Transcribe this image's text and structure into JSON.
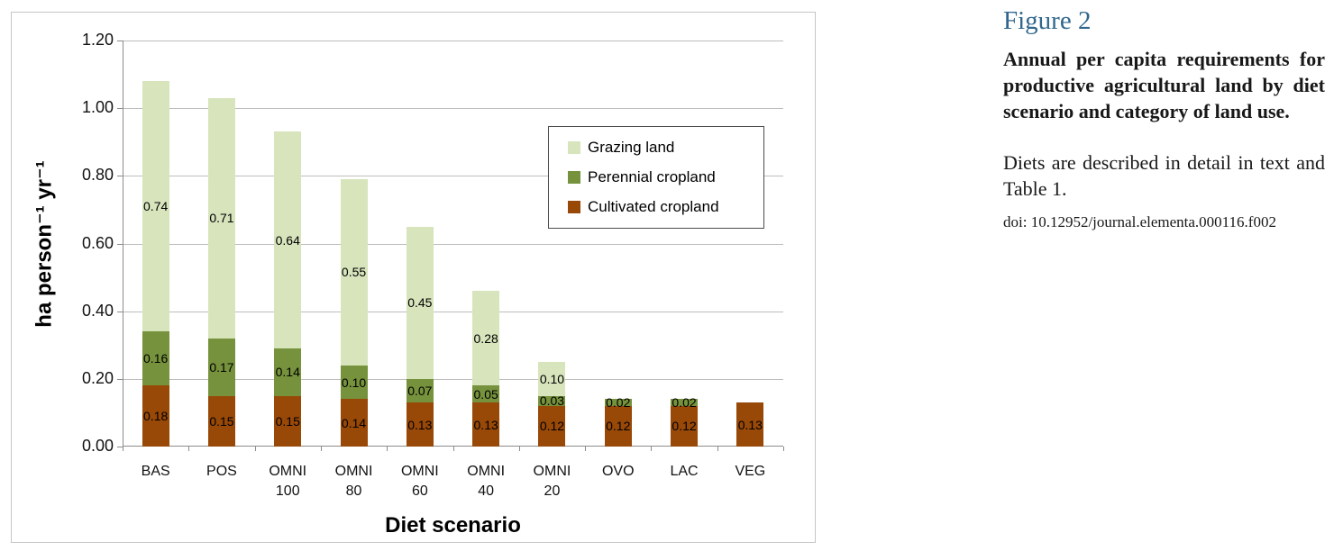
{
  "chart_data": {
    "type": "bar",
    "stacked": true,
    "categories": [
      "BAS",
      "POS",
      "OMNI 100",
      "OMNI 80",
      "OMNI 60",
      "OMNI 40",
      "OMNI 20",
      "OVO",
      "LAC",
      "VEG"
    ],
    "series": [
      {
        "name": "Cultivated cropland",
        "color": "#984807",
        "values": [
          0.18,
          0.15,
          0.15,
          0.14,
          0.13,
          0.13,
          0.12,
          0.12,
          0.12,
          0.13
        ]
      },
      {
        "name": "Perennial cropland",
        "color": "#76923C",
        "values": [
          0.16,
          0.17,
          0.14,
          0.1,
          0.07,
          0.05,
          0.03,
          0.02,
          0.02,
          0
        ]
      },
      {
        "name": "Grazing land",
        "color": "#D7E4BC",
        "values": [
          0.74,
          0.71,
          0.64,
          0.55,
          0.45,
          0.28,
          0.1,
          0,
          0,
          0
        ]
      }
    ],
    "totals": [
      1.08,
      1.03,
      0.93,
      0.79,
      0.65,
      0.46,
      0.25,
      0.14,
      0.14,
      0.13
    ],
    "title": "",
    "xlabel": "Diet scenario",
    "ylabel": "ha person⁻¹ yr⁻¹",
    "ylim": [
      0,
      1.2
    ],
    "ytick_step": 0.2,
    "ytick_labels": [
      "1.20",
      "1.00",
      "0.80",
      "0.60",
      "0.40",
      "0.20",
      "0.00"
    ],
    "grid": true,
    "data_labels": true,
    "legend": {
      "position": "inside-top-right",
      "entries": [
        {
          "label": "Grazing land",
          "color": "#D7E4BC"
        },
        {
          "label": "Perennial cropland",
          "color": "#76923C"
        },
        {
          "label": "Cultivated cropland",
          "color": "#984807"
        }
      ]
    },
    "colors": {
      "gridline": "#BDBDBD",
      "axis": "#8C8C8C"
    }
  },
  "caption": {
    "figure_label": "Figure 2",
    "figure_label_color": "#31678E",
    "title": "Annual per capita requirements for productive agricultural land by diet scenario and category of land use.",
    "description": "Diets are described in detail in text and Table 1.",
    "doi": "doi: 10.12952/journal.elementa.000116.f002"
  }
}
